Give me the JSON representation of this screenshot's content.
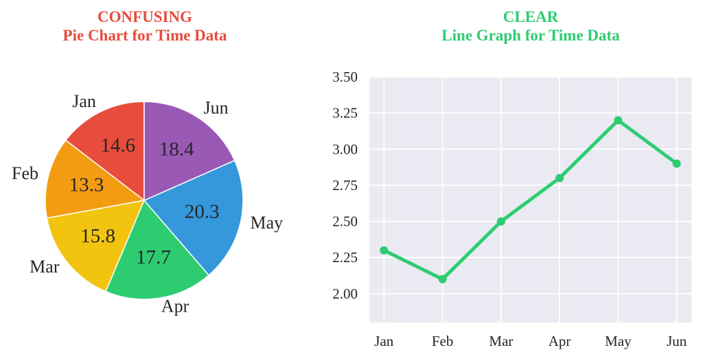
{
  "page": {
    "background": "#FFFFFF",
    "text_color": "#262626"
  },
  "chart_data": [
    {
      "type": "pie",
      "title": "CONFUSING",
      "subtitle": "Pie Chart for Time Data",
      "title_color": "#E74C3C",
      "categories": [
        "Jan",
        "Feb",
        "Mar",
        "Apr",
        "May",
        "Jun"
      ],
      "values": [
        14.6,
        13.3,
        15.8,
        17.7,
        20.3,
        18.4
      ],
      "value_labels": [
        "14.6",
        "13.3",
        "15.8",
        "17.7",
        "20.3",
        "18.4"
      ],
      "colors": [
        "#E74C3C",
        "#F39C12",
        "#F1C40F",
        "#2ECC71",
        "#3498DB",
        "#9B59B6"
      ],
      "start_angle": 90,
      "direction": "counterclockwise",
      "label_distance": 1.1,
      "value_distance": 0.6,
      "slice_edge_color": "#FFFFFF",
      "text_color": "#262626",
      "legend": "none"
    },
    {
      "type": "line",
      "title": "CLEAR",
      "subtitle": "Line Graph for Time Data",
      "title_color": "#2ECC71",
      "x": [
        "Jan",
        "Feb",
        "Mar",
        "Apr",
        "May",
        "Jun"
      ],
      "values": [
        2.3,
        2.1,
        2.5,
        2.8,
        3.2,
        2.9
      ],
      "xlabel": "",
      "ylabel": "",
      "xlim": [
        -0.25,
        5.25
      ],
      "ylim": [
        1.8,
        3.5
      ],
      "ytick_values": [
        2.0,
        2.25,
        2.5,
        2.75,
        3.0,
        3.25,
        3.5
      ],
      "ytick_labels": [
        "2.00",
        "2.25",
        "2.50",
        "2.75",
        "3.00",
        "3.25",
        "3.50"
      ],
      "line_color": "#2ECC71",
      "marker": "circle",
      "plot_background": "#EAEAF2",
      "grid": true,
      "grid_color": "#FFFFFF",
      "tick_color": "#262626",
      "legend": "none"
    }
  ]
}
